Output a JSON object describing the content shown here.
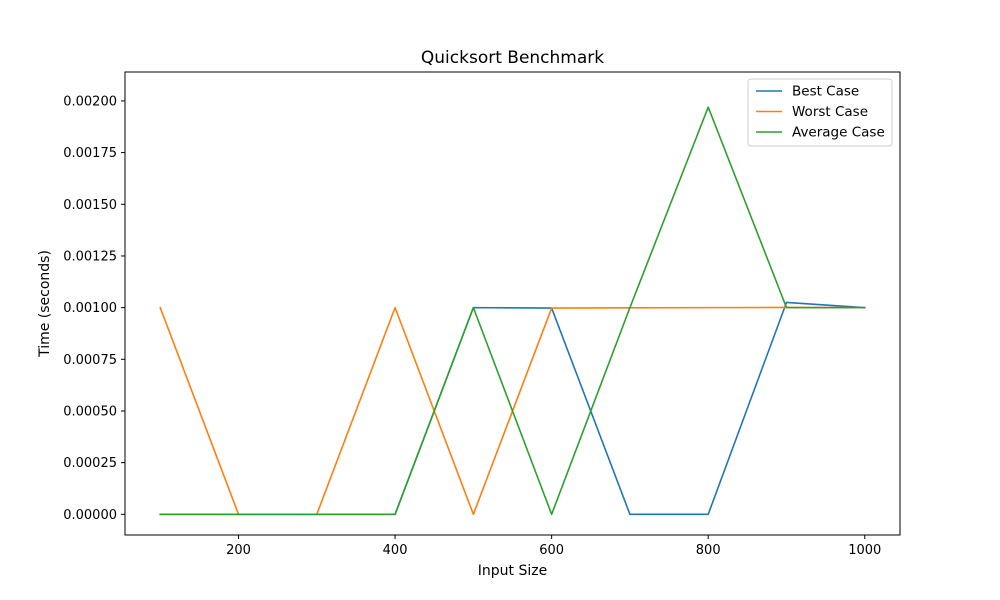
{
  "chart_data": {
    "type": "line",
    "title": "Quicksort Benchmark",
    "xlabel": "Input Size",
    "ylabel": "Time (seconds)",
    "x": [
      100,
      200,
      300,
      400,
      500,
      600,
      700,
      800,
      900,
      1000
    ],
    "xlim": [
      55,
      1045
    ],
    "ylim": [
      -0.0001,
      0.00214
    ],
    "xticks": [
      200,
      400,
      600,
      800,
      1000
    ],
    "xtick_labels": [
      "200",
      "400",
      "600",
      "800",
      "1000"
    ],
    "yticks": [
      0,
      0.00025,
      0.0005,
      0.00075,
      0.001,
      0.00125,
      0.0015,
      0.00175,
      0.002
    ],
    "ytick_labels": [
      "0.00000",
      "0.00025",
      "0.00050",
      "0.00075",
      "0.00100",
      "0.00125",
      "0.00150",
      "0.00175",
      "0.00200"
    ],
    "grid": false,
    "legend_position": "top-right",
    "series": [
      {
        "name": "Best Case",
        "color": "#1f77b4",
        "values": [
          0,
          0,
          0,
          0,
          0.001,
          0.000998,
          0,
          0,
          0.001025,
          0.001
        ]
      },
      {
        "name": "Worst Case",
        "color": "#ff7f0e",
        "values": [
          0.001,
          0,
          0,
          0.001,
          0,
          0.000998,
          0.000999,
          0.001,
          0.001001,
          0.001
        ]
      },
      {
        "name": "Average Case",
        "color": "#2ca02c",
        "values": [
          0,
          0,
          0,
          0,
          0.001,
          0,
          0.001,
          0.00197,
          0.001,
          0.001
        ]
      }
    ]
  }
}
